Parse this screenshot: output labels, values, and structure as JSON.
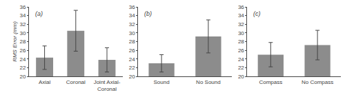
{
  "chart_data": [
    {
      "type": "bar",
      "annotations": [
        "(a)"
      ],
      "ylabel": "RMS Error (mm)",
      "categories": [
        "Axial",
        "Coronal",
        "Joint Axial-\nCoronal"
      ],
      "values": [
        24.3,
        30.5,
        23.8
      ],
      "errors": [
        2.7,
        4.7,
        2.8
      ],
      "color": "#8c8c8c",
      "ylim": [
        20,
        36
      ],
      "yticks": [
        20,
        22,
        24,
        26,
        28,
        30,
        32,
        34,
        36
      ],
      "grid": false
    },
    {
      "type": "bar",
      "annotations": [
        "(b)"
      ],
      "categories": [
        "Sound",
        "No Sound"
      ],
      "values": [
        23.0,
        29.2
      ],
      "errors": [
        2.0,
        3.8
      ],
      "color": "#8c8c8c",
      "ylim": [
        20,
        36
      ],
      "yticks": [
        20,
        22,
        24,
        26,
        28,
        30,
        32,
        34,
        36
      ],
      "grid": false
    },
    {
      "type": "bar",
      "annotations": [
        "(c)"
      ],
      "categories": [
        "Compass",
        "No Compass"
      ],
      "values": [
        25.0,
        27.2
      ],
      "errors": [
        2.8,
        3.4
      ],
      "color": "#8c8c8c",
      "ylim": [
        20,
        36
      ],
      "yticks": [
        20,
        22,
        24,
        26,
        28,
        30,
        32,
        34,
        36
      ],
      "grid": false
    }
  ]
}
